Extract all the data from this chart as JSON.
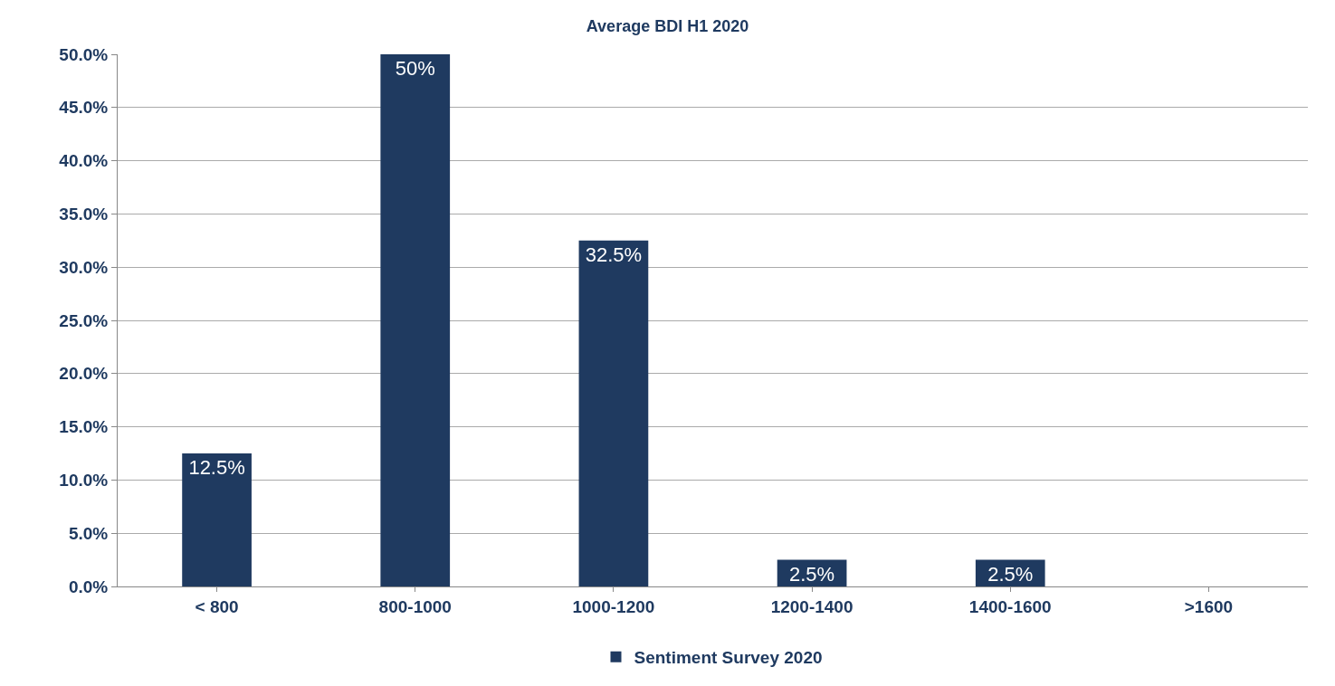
{
  "chart_data": {
    "type": "bar",
    "title": "Average BDI H1 2020",
    "categories": [
      "< 800",
      "800-1000",
      "1000-1200",
      "1200-1400",
      "1400-1600",
      ">1600"
    ],
    "series": [
      {
        "name": "Sentiment Survey 2020",
        "color": "#1f3a60",
        "values": [
          12.5,
          50,
          32.5,
          2.5,
          2.5,
          0
        ],
        "value_labels": [
          "12.5%",
          "50%",
          "32.5%",
          "2.5%",
          "2.5%",
          null
        ]
      }
    ],
    "ylim": [
      0,
      50
    ],
    "yticks": [
      {
        "value": 0,
        "label": "0.0%"
      },
      {
        "value": 5,
        "label": "5.0%"
      },
      {
        "value": 10,
        "label": "10.0%"
      },
      {
        "value": 15,
        "label": "15.0%"
      },
      {
        "value": 20,
        "label": "20.0%"
      },
      {
        "value": 25,
        "label": "25.0%"
      },
      {
        "value": 30,
        "label": "30.0%"
      },
      {
        "value": 35,
        "label": "35.0%"
      },
      {
        "value": 40,
        "label": "40.0%"
      },
      {
        "value": 45,
        "label": "45.0%"
      },
      {
        "value": 50,
        "label": "50.0%"
      }
    ],
    "grid": "y",
    "legend": "bottom"
  }
}
